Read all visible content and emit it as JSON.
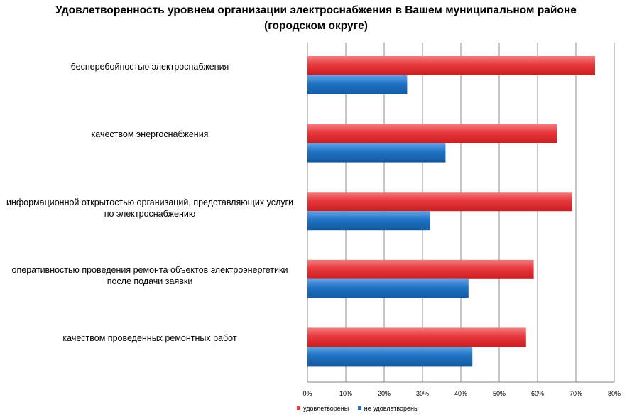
{
  "chart_data": {
    "type": "bar",
    "orientation": "horizontal",
    "title": "Удовлетворенность уровнем организации электроснабжения в Вашем муниципальном районе (городском округе)",
    "categories": [
      "бесперебойностью электроснабжения",
      "качеством энергоснабжения",
      "информационной открытостью организаций, представляющих услуги по электроснабжению",
      "оперативностью проведения ремонта объектов электроэнергетики после подачи заявки",
      "качеством проведенных ремонтных работ"
    ],
    "series": [
      {
        "name": "удовлетворены",
        "color": "#e8383b",
        "values": [
          75,
          65,
          69,
          59,
          57
        ]
      },
      {
        "name": "не удовлетворены",
        "color": "#1f72c4",
        "values": [
          26,
          36,
          32,
          42,
          43
        ]
      }
    ],
    "xlim": [
      0,
      80
    ],
    "x_ticks": [
      "0%",
      "10%",
      "20%",
      "30%",
      "40%",
      "50%",
      "60%",
      "70%",
      "80%"
    ],
    "grid": true,
    "legend_position": "bottom"
  }
}
